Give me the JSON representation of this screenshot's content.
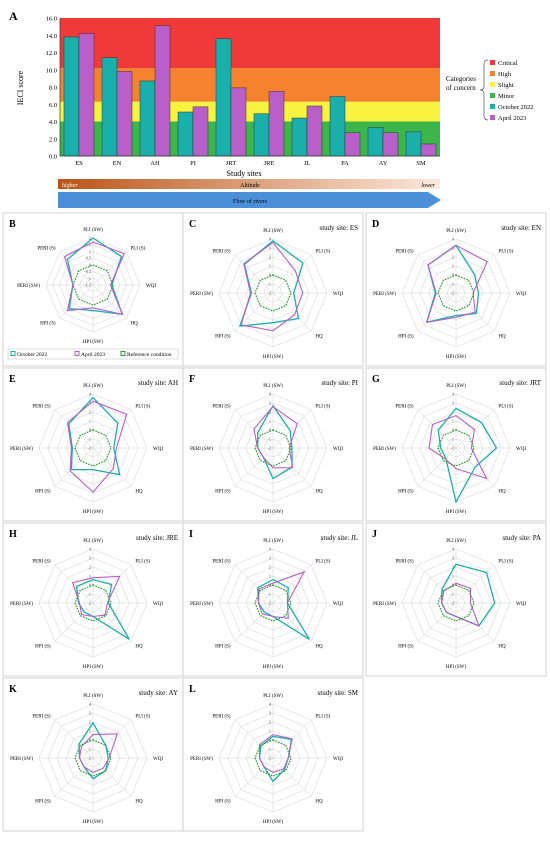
{
  "colors": {
    "critical": "#f03a3a",
    "high": "#f5822f",
    "slight": "#f7f33f",
    "minor": "#3cb54a",
    "october": "#1aafab",
    "april": "#b85fc9",
    "reference": "#25a02a",
    "flow": "#4a8fd8",
    "altitude_dark": "#bb5418",
    "altitude_light": "#fde9dc"
  },
  "panel_a": {
    "letter": "A",
    "ylabel": "IECI score",
    "xlabel": "Study sites",
    "y_ticks": [
      "0.0",
      "2.0",
      "4.0",
      "6.0",
      "8.0",
      "10.0",
      "12.0",
      "14.0",
      "16.0"
    ],
    "legend_title": "Categories\nof concern",
    "legend_title_lines": [
      "Categories",
      "of concern"
    ],
    "legend": [
      {
        "key": "critical",
        "label": "Critical"
      },
      {
        "key": "high",
        "label": "High"
      },
      {
        "key": "slight",
        "label": "Slight"
      },
      {
        "key": "minor",
        "label": "Minor"
      },
      {
        "key": "october",
        "label": "October 2022"
      },
      {
        "key": "april",
        "label": "April 2023"
      }
    ],
    "altitude_label": "Altitude",
    "altitude_high": "higher",
    "altitude_low": "lower",
    "flow_label": "Flow of rivers"
  },
  "chart_data": [
    {
      "type": "bar",
      "panel": "A",
      "xlabel": "Study sites",
      "ylabel": "IECI score",
      "ylim": [
        0,
        16
      ],
      "categories": [
        "ES",
        "EN",
        "AH",
        "PI",
        "JRT",
        "JRE",
        "JL",
        "PA",
        "AY",
        "SM"
      ],
      "bands": [
        {
          "name": "Minor",
          "range": [
            0,
            4
          ]
        },
        {
          "name": "Slight",
          "range": [
            4,
            6.3
          ]
        },
        {
          "name": "High",
          "range": [
            6.3,
            10.2
          ]
        },
        {
          "name": "Critical",
          "range": [
            10.2,
            16
          ]
        }
      ],
      "series": [
        {
          "name": "October 2022",
          "values": [
            13.8,
            11.4,
            8.7,
            5.1,
            13.6,
            4.9,
            4.4,
            6.9,
            3.3,
            2.8
          ]
        },
        {
          "name": "April 2023",
          "values": [
            14.2,
            9.8,
            15.1,
            5.7,
            7.9,
            7.5,
            5.8,
            2.7,
            2.7,
            1.4
          ]
        }
      ],
      "legend": "right"
    },
    {
      "type": "radar",
      "panel": "B",
      "axes": [
        "PLI (SW)",
        "PLI (S)",
        "WQI",
        "HQ",
        "HPI (SW)",
        "HPI (S)",
        "PERI (SW)",
        "PERI (S)"
      ],
      "scale": [
        -1.5,
        2
      ],
      "tick_labels": [
        "2",
        "1.5",
        "1",
        "0.5",
        "0",
        "-0.5",
        "-1",
        "-1.5"
      ],
      "series": [
        {
          "name": "October 2022",
          "values": [
            2.0,
            1.5,
            -0.1,
            1.6,
            0.4,
            1.0,
            0.0,
            1.2
          ]
        },
        {
          "name": "April 2023",
          "values": [
            1.7,
            1.8,
            -0.2,
            1.6,
            0.2,
            1.2,
            0.0,
            1.5
          ]
        },
        {
          "name": "Reference condition",
          "values": [
            0,
            0,
            0,
            0,
            0,
            0,
            0,
            0
          ]
        }
      ],
      "legend": "bottom"
    },
    {
      "type": "radar",
      "panel": "C",
      "site": "ES",
      "axes": [
        "PLI (SW)",
        "PLI (S)",
        "WQI",
        "HQ",
        "HPI (SW)",
        "HPI (S)",
        "PERI (SW)",
        "PERI (S)"
      ],
      "scale": [
        -2,
        4
      ],
      "series": [
        {
          "name": "October 2022",
          "values": [
            3.8,
            2.7,
            0.3,
            2.0,
            1.3,
            3.2,
            0.4,
            2.5
          ]
        },
        {
          "name": "April 2023",
          "values": [
            3.6,
            1.5,
            1.3,
            1.4,
            2.2,
            3.0,
            0.5,
            2.6
          ]
        },
        {
          "name": "Reference condition",
          "values": [
            0,
            0,
            0,
            0,
            0,
            0,
            0,
            0
          ]
        }
      ]
    },
    {
      "type": "radar",
      "panel": "D",
      "site": "EN",
      "axes": [
        "PLI (SW)",
        "PLI (S)",
        "WQI",
        "HQ",
        "HPI (SW)",
        "HPI (S)",
        "PERI (SW)",
        "PERI (S)"
      ],
      "scale": [
        -2,
        4
      ],
      "series": [
        {
          "name": "October 2022",
          "values": [
            3.3,
            0.9,
            0.5,
            1.2,
            0.5,
            2.6,
            0.3,
            2.4
          ]
        },
        {
          "name": "April 2023",
          "values": [
            3.3,
            2.9,
            -0.1,
            1.0,
            0.7,
            2.6,
            0.2,
            2.4
          ]
        },
        {
          "name": "Reference condition",
          "values": [
            0,
            0,
            0,
            0,
            0,
            0,
            0,
            0
          ]
        }
      ]
    },
    {
      "type": "radar",
      "panel": "E",
      "site": "AH",
      "axes": [
        "PLI (SW)",
        "PLI (S)",
        "WQI",
        "HQ",
        "HPI (SW)",
        "HPI (S)",
        "PERI (SW)",
        "PERI (S)"
      ],
      "scale": [
        -2,
        4
      ],
      "series": [
        {
          "name": "October 2022",
          "values": [
            3.6,
            1.9,
            0.3,
            2.2,
            0.4,
            1.4,
            0.3,
            1.8
          ]
        },
        {
          "name": "April 2023",
          "values": [
            3.2,
            3.3,
            0.6,
            1.2,
            2.9,
            1.6,
            0.4,
            2.0
          ]
        },
        {
          "name": "Reference condition",
          "values": [
            0,
            0,
            0,
            0,
            0,
            0,
            0,
            0
          ]
        }
      ]
    },
    {
      "type": "radar",
      "panel": "F",
      "site": "PI",
      "axes": [
        "PLI (SW)",
        "PLI (S)",
        "WQI",
        "HQ",
        "HPI (SW)",
        "HPI (S)",
        "PERI (SW)",
        "PERI (S)"
      ],
      "scale": [
        -2,
        4
      ],
      "series": [
        {
          "name": "October 2022",
          "values": [
            2.7,
            0.7,
            0.1,
            1.0,
            1.4,
            -0.5,
            -0.3,
            0.4
          ]
        },
        {
          "name": "April 2023",
          "values": [
            2.6,
            1.8,
            -0.2,
            1.1,
            0.2,
            -0.5,
            -0.3,
            1.0
          ]
        },
        {
          "name": "Reference condition",
          "values": [
            0,
            0,
            0,
            0,
            0,
            0,
            0,
            0
          ]
        }
      ]
    },
    {
      "type": "radar",
      "panel": "G",
      "site": "JRT",
      "axes": [
        "PLI (SW)",
        "PLI (S)",
        "WQI",
        "HQ",
        "HPI (SW)",
        "HPI (S)",
        "PERI (SW)",
        "PERI (S)"
      ],
      "scale": [
        -2,
        4
      ],
      "series": [
        {
          "name": "October 2022",
          "values": [
            2.4,
            2.0,
            2.5,
            1.0,
            4.0,
            -0.4,
            -0.3,
            0.8
          ]
        },
        {
          "name": "April 2023",
          "values": [
            1.6,
            0.9,
            -0.3,
            2.8,
            0.3,
            -0.3,
            1.0,
            1.7
          ]
        },
        {
          "name": "Reference condition",
          "values": [
            0,
            0,
            0,
            0,
            0,
            0,
            0,
            0
          ]
        }
      ]
    },
    {
      "type": "radar",
      "panel": "H",
      "site": "JRE",
      "axes": [
        "PLI (SW)",
        "PLI (S)",
        "WQI",
        "HQ",
        "HPI (SW)",
        "HPI (S)",
        "PERI (SW)",
        "PERI (S)"
      ],
      "scale": [
        -2,
        4
      ],
      "series": [
        {
          "name": "October 2022",
          "values": [
            0.6,
            0.9,
            -0.3,
            3.7,
            -0.5,
            -0.6,
            -0.4,
            0.6
          ]
        },
        {
          "name": "April 2023",
          "values": [
            0.8,
            2.2,
            -0.4,
            -0.1,
            -0.5,
            -0.2,
            -0.5,
            1.2
          ]
        },
        {
          "name": "Reference condition",
          "values": [
            0,
            0,
            0,
            0,
            0,
            0,
            0,
            0
          ]
        }
      ]
    },
    {
      "type": "radar",
      "panel": "I",
      "site": "JL",
      "axes": [
        "PLI (SW)",
        "PLI (S)",
        "WQI",
        "HQ",
        "HPI (SW)",
        "HPI (S)",
        "PERI (SW)",
        "PERI (S)"
      ],
      "scale": [
        -2,
        4
      ],
      "series": [
        {
          "name": "October 2022",
          "values": [
            0.6,
            0.4,
            -0.4,
            3.7,
            -0.5,
            -0.6,
            -0.4,
            0.4
          ]
        },
        {
          "name": "April 2023",
          "values": [
            0.2,
            2.9,
            -0.4,
            0.4,
            -0.5,
            -0.3,
            -0.4,
            0.2
          ]
        },
        {
          "name": "Reference condition",
          "values": [
            0,
            0,
            0,
            0,
            0,
            0,
            0,
            0
          ]
        }
      ]
    },
    {
      "type": "radar",
      "panel": "J",
      "site": "PA",
      "axes": [
        "PLI (SW)",
        "PLI (S)",
        "WQI",
        "HQ",
        "HPI (SW)",
        "HPI (S)",
        "PERI (SW)",
        "PERI (S)"
      ],
      "scale": [
        -2,
        4
      ],
      "series": [
        {
          "name": "October 2022",
          "values": [
            2.3,
            2.8,
            2.3,
            1.6,
            -0.5,
            -0.5,
            -0.4,
            0.2
          ]
        },
        {
          "name": "April 2023",
          "values": [
            0.2,
            0.3,
            -0.4,
            1.6,
            -0.5,
            -0.5,
            -0.4,
            -0.1
          ]
        },
        {
          "name": "Reference condition",
          "values": [
            0,
            0,
            0,
            0,
            0,
            0,
            0,
            0
          ]
        }
      ]
    },
    {
      "type": "radar",
      "panel": "K",
      "site": "AY",
      "axes": [
        "PLI (SW)",
        "PLI (S)",
        "WQI",
        "HQ",
        "HPI (SW)",
        "HPI (S)",
        "PERI (SW)",
        "PERI (S)"
      ],
      "scale": [
        -2,
        4
      ],
      "series": [
        {
          "name": "October 2022",
          "values": [
            1.9,
            0.0,
            -0.3,
            0.0,
            0.3,
            -0.6,
            -0.5,
            0.2
          ]
        },
        {
          "name": "April 2023",
          "values": [
            0.6,
            1.8,
            -0.2,
            -0.4,
            -0.4,
            -0.6,
            -0.5,
            -0.2
          ]
        },
        {
          "name": "Reference condition",
          "values": [
            0,
            0,
            0,
            0,
            0,
            0,
            0,
            0
          ]
        }
      ]
    },
    {
      "type": "radar",
      "panel": "L",
      "site": "SM",
      "axes": [
        "PLI (SW)",
        "PLI (S)",
        "WQI",
        "HQ",
        "HPI (SW)",
        "HPI (S)",
        "PERI (SW)",
        "PERI (S)"
      ],
      "scale": [
        -2,
        4
      ],
      "series": [
        {
          "name": "October 2022",
          "values": [
            0.4,
            0.9,
            -0.3,
            -0.2,
            0.6,
            -0.6,
            -0.5,
            -0.1
          ]
        },
        {
          "name": "April 2023",
          "values": [
            0.6,
            1.0,
            -0.3,
            -0.3,
            -0.4,
            -0.6,
            -0.5,
            0.1
          ]
        },
        {
          "name": "Reference condition",
          "values": [
            0,
            0,
            0,
            0,
            0,
            0,
            0,
            0
          ]
        }
      ]
    }
  ],
  "radar_common": {
    "tick_labels": [
      "4",
      "3",
      "2",
      "1",
      "0",
      "-1",
      "-2"
    ],
    "site_prefix": "study site:"
  },
  "legend_b": {
    "october": "October 2022",
    "april": "April 2023",
    "reference": "Reference condition"
  }
}
